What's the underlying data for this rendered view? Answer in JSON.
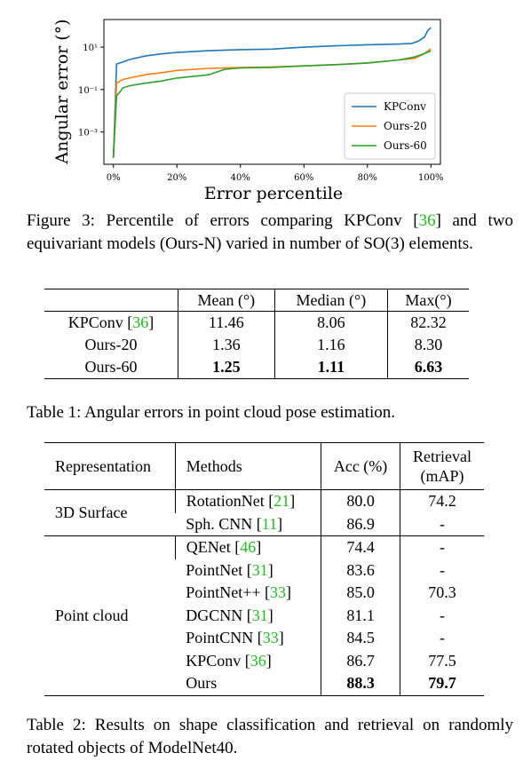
{
  "chart_data": {
    "type": "line",
    "ylabel": "Angular error (°)",
    "xlabel": "Error percentile",
    "xlim": [
      -3,
      103
    ],
    "xticks": [
      {
        "value": 0,
        "label": "0%"
      },
      {
        "value": 20,
        "label": "20%"
      },
      {
        "value": 40,
        "label": "40%"
      },
      {
        "value": 60,
        "label": "60%"
      },
      {
        "value": 80,
        "label": "80%"
      },
      {
        "value": 100,
        "label": "100%"
      }
    ],
    "ylim": [
      3e-05,
      200
    ],
    "ylog": true,
    "yticks": [
      {
        "value": 10,
        "label": "10¹"
      },
      {
        "value": 0.1,
        "label": "10⁻¹"
      },
      {
        "value": 0.001,
        "label": "10⁻³"
      }
    ],
    "legend": "lower right",
    "series": [
      {
        "name": "KPConv",
        "color": "#1f77b4",
        "x": [
          0,
          1,
          3,
          5,
          10,
          15,
          20,
          30,
          40,
          50,
          60,
          70,
          80,
          90,
          94,
          96,
          98,
          99,
          100
        ],
        "values": [
          6e-05,
          1.6,
          2,
          2.6,
          3.8,
          4.8,
          5.6,
          6.8,
          7.6,
          8.06,
          10,
          11.5,
          13,
          14,
          15,
          19,
          30,
          60,
          82.32
        ]
      },
      {
        "name": "Ours-20",
        "color": "#ff7f0e",
        "x": [
          0,
          1,
          3,
          5,
          10,
          15,
          20,
          30,
          40,
          50,
          60,
          70,
          80,
          90,
          95,
          98,
          100
        ],
        "values": [
          6e-05,
          0.2,
          0.3,
          0.35,
          0.5,
          0.62,
          0.8,
          1.0,
          1.1,
          1.16,
          1.3,
          1.5,
          1.8,
          2.5,
          3,
          5,
          8.3
        ]
      },
      {
        "name": "Ours-60",
        "color": "#2ca02c",
        "x": [
          0,
          1,
          3,
          5,
          10,
          15,
          20,
          30,
          35,
          40,
          50,
          60,
          70,
          80,
          90,
          95,
          98,
          100
        ],
        "values": [
          6e-05,
          0.05,
          0.12,
          0.15,
          0.2,
          0.25,
          0.35,
          0.5,
          0.9,
          1.05,
          1.11,
          1.3,
          1.5,
          1.8,
          2.5,
          3.5,
          5,
          6.63
        ]
      }
    ]
  },
  "figure_caption": {
    "label": "Figure 3:",
    "before": "Percentile of errors comparing KPConv",
    "ref": "[36]",
    "after": "and two equivariant models (Ours-N) varied in number of SO(3) elements."
  },
  "table1": {
    "header": [
      "Mean (°)",
      "Median (°)",
      "Max(°)"
    ],
    "rows": [
      {
        "method": "KPConv",
        "ref": "[36]",
        "cells": [
          "11.46",
          "8.06",
          "82.32"
        ],
        "best": false
      },
      {
        "method": "Ours-20",
        "cells": [
          "1.36",
          "1.16",
          "8.30"
        ],
        "best": false
      },
      {
        "method": "Ours-60",
        "cells": [
          "1.25",
          "1.11",
          "6.63"
        ],
        "best": true
      }
    ],
    "caption": {
      "label": "Table 1:",
      "text": "Angular errors in point cloud pose estimation."
    }
  },
  "table2": {
    "header": [
      "Representation",
      "Methods",
      "Acc (%)",
      [
        "Retrieval",
        "(mAP)"
      ]
    ],
    "groups": [
      {
        "name": "3D Surface",
        "rows": [
          {
            "method": "RotationNet",
            "ref": "[21]",
            "acc": "80.0",
            "retrieval": "74.2",
            "best": false
          },
          {
            "method": "Sph. CNN",
            "ref": "[11]",
            "acc": "86.9",
            "retrieval": "-",
            "best": false
          }
        ]
      },
      {
        "name": "Point cloud",
        "rows": [
          {
            "method": "QENet",
            "ref": "[46]",
            "acc": "74.4",
            "retrieval": "-",
            "best": false
          },
          {
            "method": "PointNet",
            "ref": "[31]",
            "acc": "83.6",
            "retrieval": "-",
            "best": false
          },
          {
            "method": "PointNet++",
            "ref": "[33]",
            "acc": "85.0",
            "retrieval": "70.3",
            "best": false
          },
          {
            "method": "DGCNN",
            "ref": "[31]",
            "acc": "81.1",
            "retrieval": "-",
            "best": false
          },
          {
            "method": "PointCNN",
            "ref": "[33]",
            "acc": "84.5",
            "retrieval": "-",
            "best": false
          },
          {
            "method": "KPConv",
            "ref": "[36]",
            "acc": "86.7",
            "retrieval": "77.5",
            "best": false
          },
          {
            "method": "Ours",
            "acc": "88.3",
            "retrieval": "79.7",
            "best": true
          }
        ]
      }
    ],
    "caption": {
      "label": "Table 2:",
      "text": "Results on shape classification and retrieval on randomly rotated objects of ModelNet40."
    }
  }
}
